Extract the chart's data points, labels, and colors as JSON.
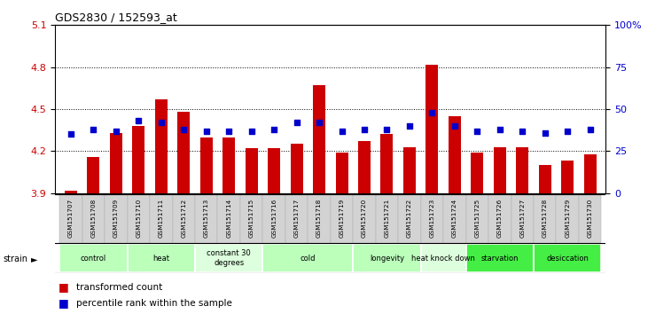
{
  "title": "GDS2830 / 152593_at",
  "samples": [
    "GSM151707",
    "GSM151708",
    "GSM151709",
    "GSM151710",
    "GSM151711",
    "GSM151712",
    "GSM151713",
    "GSM151714",
    "GSM151715",
    "GSM151716",
    "GSM151717",
    "GSM151718",
    "GSM151719",
    "GSM151720",
    "GSM151721",
    "GSM151722",
    "GSM151723",
    "GSM151724",
    "GSM151725",
    "GSM151726",
    "GSM151727",
    "GSM151728",
    "GSM151729",
    "GSM151730"
  ],
  "red_values": [
    3.92,
    4.16,
    4.33,
    4.38,
    4.57,
    4.48,
    4.3,
    4.3,
    4.22,
    4.22,
    4.25,
    4.67,
    4.19,
    4.27,
    4.32,
    4.23,
    4.82,
    4.45,
    4.19,
    4.23,
    4.23,
    4.1,
    4.13,
    4.18
  ],
  "blue_values": [
    35,
    38,
    37,
    43,
    42,
    38,
    37,
    37,
    37,
    38,
    42,
    42,
    37,
    38,
    38,
    40,
    48,
    40,
    37,
    38,
    37,
    36,
    37,
    38
  ],
  "groups": [
    {
      "label": "control",
      "start": 0,
      "end": 2,
      "color": "#bbffbb"
    },
    {
      "label": "heat",
      "start": 3,
      "end": 5,
      "color": "#bbffbb"
    },
    {
      "label": "constant 30\ndegrees",
      "start": 6,
      "end": 8,
      "color": "#ddffdd"
    },
    {
      "label": "cold",
      "start": 9,
      "end": 12,
      "color": "#bbffbb"
    },
    {
      "label": "longevity",
      "start": 13,
      "end": 15,
      "color": "#bbffbb"
    },
    {
      "label": "heat knock down",
      "start": 16,
      "end": 17,
      "color": "#ddffdd"
    },
    {
      "label": "starvation",
      "start": 18,
      "end": 20,
      "color": "#44ee44"
    },
    {
      "label": "desiccation",
      "start": 21,
      "end": 23,
      "color": "#44ee44"
    }
  ],
  "ylim": [
    3.9,
    5.1
  ],
  "yticks": [
    3.9,
    4.2,
    4.5,
    4.8,
    5.1
  ],
  "y2ticks": [
    0,
    25,
    50,
    75,
    100
  ],
  "bar_color": "#cc0000",
  "dot_color": "#0000cc",
  "bg_color": "#ffffff",
  "tick_label_color_left": "#cc0000",
  "tick_label_color_right": "#0000cc",
  "legend_red": "transformed count",
  "legend_blue": "percentile rank within the sample",
  "grid_lines": [
    4.2,
    4.5,
    4.8
  ]
}
